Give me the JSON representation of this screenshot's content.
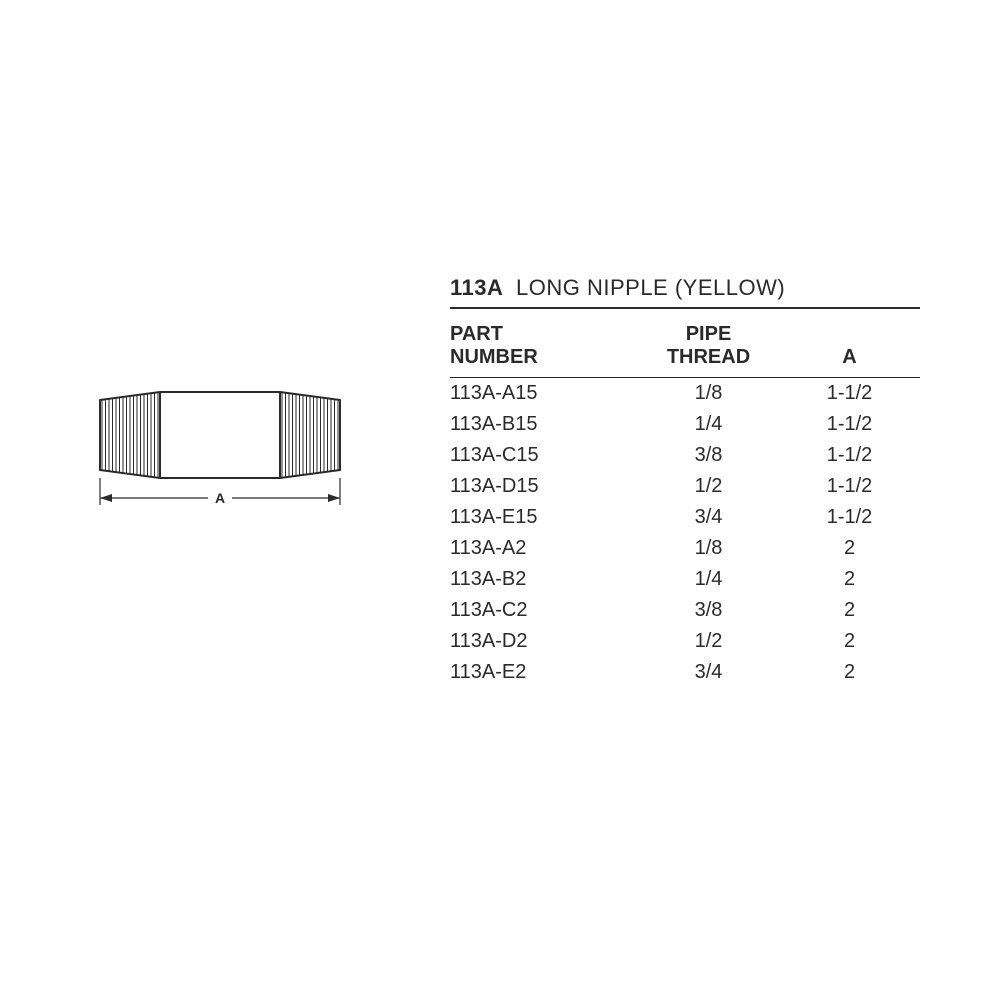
{
  "title": {
    "code": "113A",
    "description": "LONG NIPPLE (YELLOW)"
  },
  "diagram": {
    "dimension_label": "A",
    "stroke_color": "#2a2a2a",
    "stroke_width": 2,
    "thread_line_width": 1
  },
  "table": {
    "columns": [
      {
        "key": "part",
        "label_line1": "PART",
        "label_line2": "NUMBER",
        "align": "left"
      },
      {
        "key": "pipe",
        "label_line1": "PIPE",
        "label_line2": "THREAD",
        "align": "center"
      },
      {
        "key": "a",
        "label_line1": "",
        "label_line2": "A",
        "align": "center"
      }
    ],
    "rows": [
      {
        "part": "113A-A15",
        "pipe": "1/8",
        "a": "1-1/2"
      },
      {
        "part": "113A-B15",
        "pipe": "1/4",
        "a": "1-1/2"
      },
      {
        "part": "113A-C15",
        "pipe": "3/8",
        "a": "1-1/2"
      },
      {
        "part": "113A-D15",
        "pipe": "1/2",
        "a": "1-1/2"
      },
      {
        "part": "113A-E15",
        "pipe": "3/4",
        "a": "1-1/2"
      },
      {
        "part": "113A-A2",
        "pipe": "1/8",
        "a": "2"
      },
      {
        "part": "113A-B2",
        "pipe": "1/4",
        "a": "2"
      },
      {
        "part": "113A-C2",
        "pipe": "3/8",
        "a": "2"
      },
      {
        "part": "113A-D2",
        "pipe": "1/2",
        "a": "2"
      },
      {
        "part": "113A-E2",
        "pipe": "3/4",
        "a": "2"
      }
    ]
  },
  "style": {
    "text_color": "#2a2a2a",
    "background_color": "#ffffff",
    "title_fontsize": 22,
    "body_fontsize": 20
  }
}
